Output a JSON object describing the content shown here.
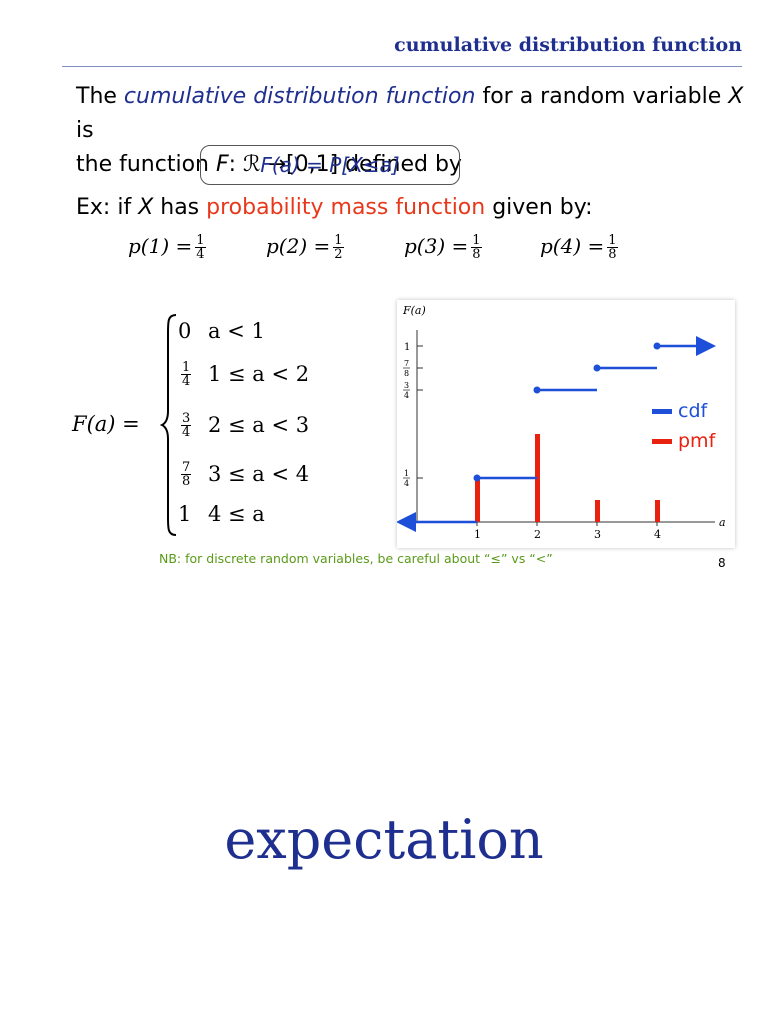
{
  "header": {
    "title": "cumulative distribution function"
  },
  "definition": {
    "line1_prefix": "The ",
    "line1_term": "cumulative distribution function",
    "line1_mid": " for a random variable ",
    "line1_var": "X",
    "line1_suffix": " is",
    "line2_prefix": "the function ",
    "line2_func": "F",
    "line2_rest": ": ℛ →[0,1] defined by",
    "box_formula": "F(a) = P[X≤a]"
  },
  "example": {
    "prefix": "Ex: if ",
    "var": "X",
    "mid": " has ",
    "highlight": "probability mass function",
    "suffix": " given by:",
    "pmf": [
      {
        "label": "p(1) =",
        "num": "1",
        "den": "4"
      },
      {
        "label": "p(2) =",
        "num": "1",
        "den": "2"
      },
      {
        "label": "p(3) =",
        "num": "1",
        "den": "8"
      },
      {
        "label": "p(4) =",
        "num": "1",
        "den": "8"
      }
    ]
  },
  "piecewise": {
    "lhs": "F(a) =",
    "cases": [
      {
        "value": "0",
        "num": "",
        "den": "",
        "cond": "a < 1"
      },
      {
        "value": "",
        "num": "1",
        "den": "4",
        "cond": "1 ≤ a < 2"
      },
      {
        "value": "",
        "num": "3",
        "den": "4",
        "cond": "2 ≤ a < 3"
      },
      {
        "value": "",
        "num": "7",
        "den": "8",
        "cond": "3 ≤ a < 4"
      },
      {
        "value": "1",
        "num": "",
        "den": "",
        "cond": "4 ≤ a"
      }
    ]
  },
  "chart_data": {
    "type": "line",
    "ylabel": "F(a)",
    "xlabel": "a",
    "x_ticks": [
      "1",
      "2",
      "3",
      "4"
    ],
    "y_ticks": [
      {
        "value": 1,
        "num": "1",
        "den": ""
      },
      {
        "value": 0.875,
        "num": "7",
        "den": "8"
      },
      {
        "value": 0.75,
        "num": "3",
        "den": "4"
      },
      {
        "value": 0.25,
        "num": "1",
        "den": "4"
      }
    ],
    "xlim": [
      0,
      5
    ],
    "ylim": [
      0,
      1.1
    ],
    "series": [
      {
        "name": "cdf",
        "color": "#1e4fd8",
        "steps": [
          {
            "x_start": 0,
            "x_end": 1,
            "y": 0
          },
          {
            "x_start": 1,
            "x_end": 2,
            "y": 0.25
          },
          {
            "x_start": 2,
            "x_end": 3,
            "y": 0.75
          },
          {
            "x_start": 3,
            "x_end": 4,
            "y": 0.875
          },
          {
            "x_start": 4,
            "x_end": 5,
            "y": 1
          }
        ]
      },
      {
        "name": "pmf",
        "color": "#e8220f",
        "x": [
          1,
          2,
          3,
          4
        ],
        "values": [
          0.25,
          0.5,
          0.125,
          0.125
        ]
      }
    ],
    "legend": [
      "cdf",
      "pmf"
    ],
    "legend_position": "right"
  },
  "note": "NB: for discrete random variables, be careful about “≤” vs “<”",
  "page_number": "8",
  "next_slide_title": "expectation"
}
